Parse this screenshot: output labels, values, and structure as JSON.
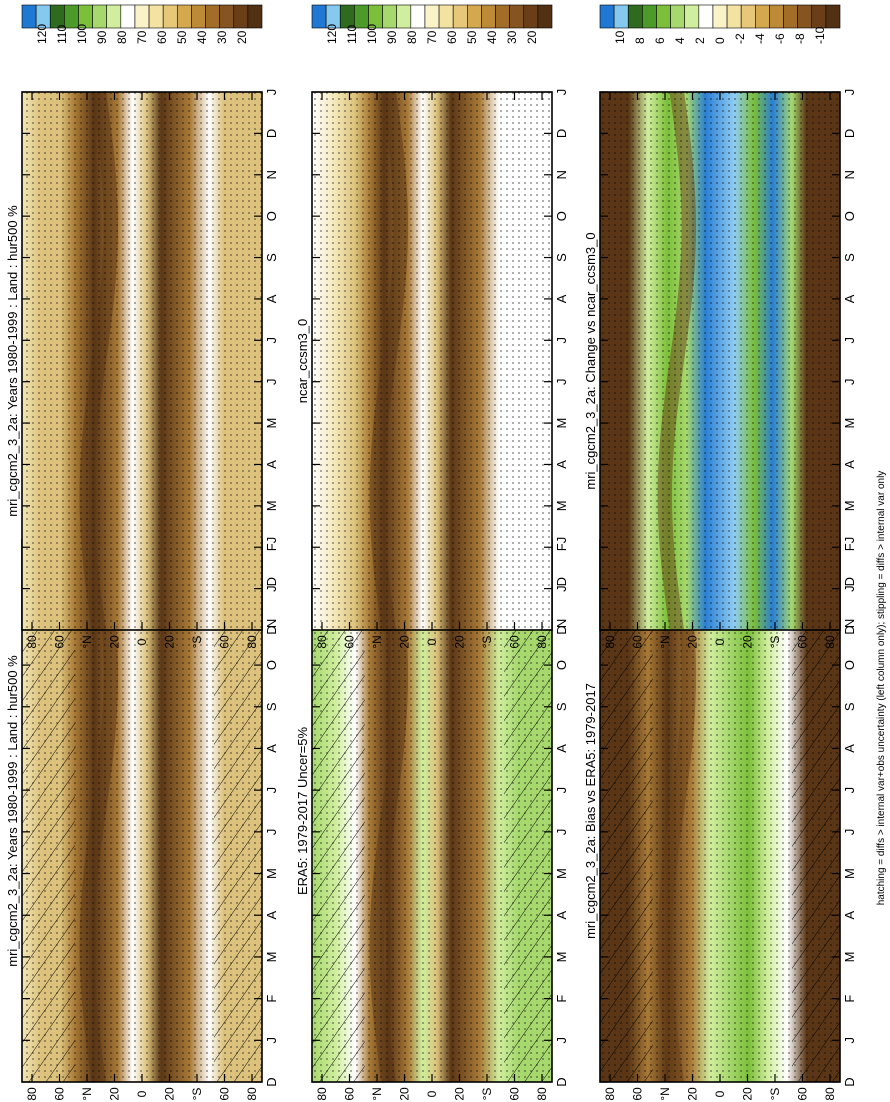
{
  "footnote": "hatching = diffs > internal var+obs uncertainty (left column only); stippling = diffs > internal var only",
  "colorbars": {
    "humidity": {
      "labels": [
        "120",
        "110",
        "100",
        "90",
        "80",
        "70",
        "60",
        "50",
        "40",
        "30",
        "20"
      ],
      "colors": [
        "#1f78d2",
        "#85c8f0",
        "#2e6b1e",
        "#4c9a2a",
        "#7cbf3a",
        "#a6d86e",
        "#d0ee9e",
        "#ffffff",
        "#fbf3c8",
        "#f3e2a0",
        "#e6c878",
        "#d4a94e",
        "#bd8a37",
        "#a26d28",
        "#855420",
        "#6a3f18",
        "#523014"
      ]
    },
    "change": {
      "labels": [
        "10",
        "8",
        "6",
        "4",
        "2",
        "0",
        "-2",
        "-4",
        "-6",
        "-8",
        "-10"
      ],
      "colors": [
        "#1f78d2",
        "#85c8f0",
        "#2e6b1e",
        "#4c9a2a",
        "#7cbf3a",
        "#a6d86e",
        "#d0ee9e",
        "#ffffff",
        "#fbf3c8",
        "#f3e2a0",
        "#e6c878",
        "#d4a94e",
        "#bd8a37",
        "#a26d28",
        "#855420",
        "#6a3f18",
        "#523014"
      ]
    }
  },
  "chart_data": [
    {
      "type": "heatmap",
      "title": "mri_cgcm2_3_2a: Years 1980-1999 : Land : hur500 %",
      "x": [
        "D",
        "J",
        "F",
        "M",
        "A",
        "M",
        "J",
        "J",
        "A",
        "S",
        "O",
        "N",
        "D",
        "J"
      ],
      "y_ticks": [
        "80",
        "60",
        "°N",
        "20",
        "0",
        "20",
        "°S",
        "60",
        "80"
      ],
      "ylim": [
        -90,
        90
      ],
      "colorbar": "humidity",
      "hatching": true,
      "stippling": true
    },
    {
      "type": "heatmap",
      "title": "mri_cgcm2_3_2a: Years 1980-1999 : Land : hur500 %",
      "x": [
        "D",
        "J",
        "F",
        "M",
        "A",
        "M",
        "J",
        "J",
        "A",
        "S",
        "O",
        "N",
        "D",
        "J"
      ],
      "y_ticks": [
        "80",
        "60",
        "°N",
        "20",
        "0",
        "20",
        "°S",
        "60",
        "80"
      ],
      "ylim": [
        -90,
        90
      ],
      "colorbar": "humidity",
      "hatching": false,
      "stippling": true
    },
    {
      "type": "heatmap",
      "title": "ERA5: 1979-2017 Uncer=5%",
      "x": [
        "D",
        "J",
        "F",
        "M",
        "A",
        "M",
        "J",
        "J",
        "A",
        "S",
        "O",
        "N",
        "D",
        "J"
      ],
      "y_ticks": [
        "80",
        "60",
        "°N",
        "20",
        "0",
        "20",
        "°S",
        "60",
        "80"
      ],
      "ylim": [
        -90,
        90
      ],
      "colorbar": "humidity",
      "hatching": true,
      "stippling": true
    },
    {
      "type": "heatmap",
      "title": "ncar_ccsm3_0",
      "x": [
        "D",
        "J",
        "F",
        "M",
        "A",
        "M",
        "J",
        "J",
        "A",
        "S",
        "O",
        "N",
        "D",
        "J"
      ],
      "y_ticks": [
        "80",
        "60",
        "°N",
        "20",
        "0",
        "20",
        "°S",
        "60",
        "80"
      ],
      "ylim": [
        -90,
        90
      ],
      "colorbar": "humidity",
      "hatching": false,
      "stippling": true
    },
    {
      "type": "heatmap",
      "title": "mri_cgcm2_3_2a: Bias vs ERA5: 1979-2017",
      "x": [
        "D",
        "J",
        "F",
        "M",
        "A",
        "M",
        "J",
        "J",
        "A",
        "S",
        "O",
        "N",
        "D",
        "J"
      ],
      "y_ticks": [
        "80",
        "60",
        "°N",
        "20",
        "0",
        "20",
        "°S",
        "60",
        "80"
      ],
      "ylim": [
        -90,
        90
      ],
      "colorbar": "change",
      "hatching": true,
      "stippling": true
    },
    {
      "type": "heatmap",
      "title": "mri_cgcm2_3_2a: Change vs ncar_ccsm3_0",
      "x": [
        "D",
        "J",
        "F",
        "M",
        "A",
        "M",
        "J",
        "J",
        "A",
        "S",
        "O",
        "N",
        "D",
        "J"
      ],
      "y_ticks": [
        "80",
        "60",
        "°N",
        "20",
        "0",
        "20",
        "°S",
        "60",
        "80"
      ],
      "ylim": [
        -90,
        90
      ],
      "colorbar": "change",
      "hatching": false,
      "stippling": true
    }
  ]
}
